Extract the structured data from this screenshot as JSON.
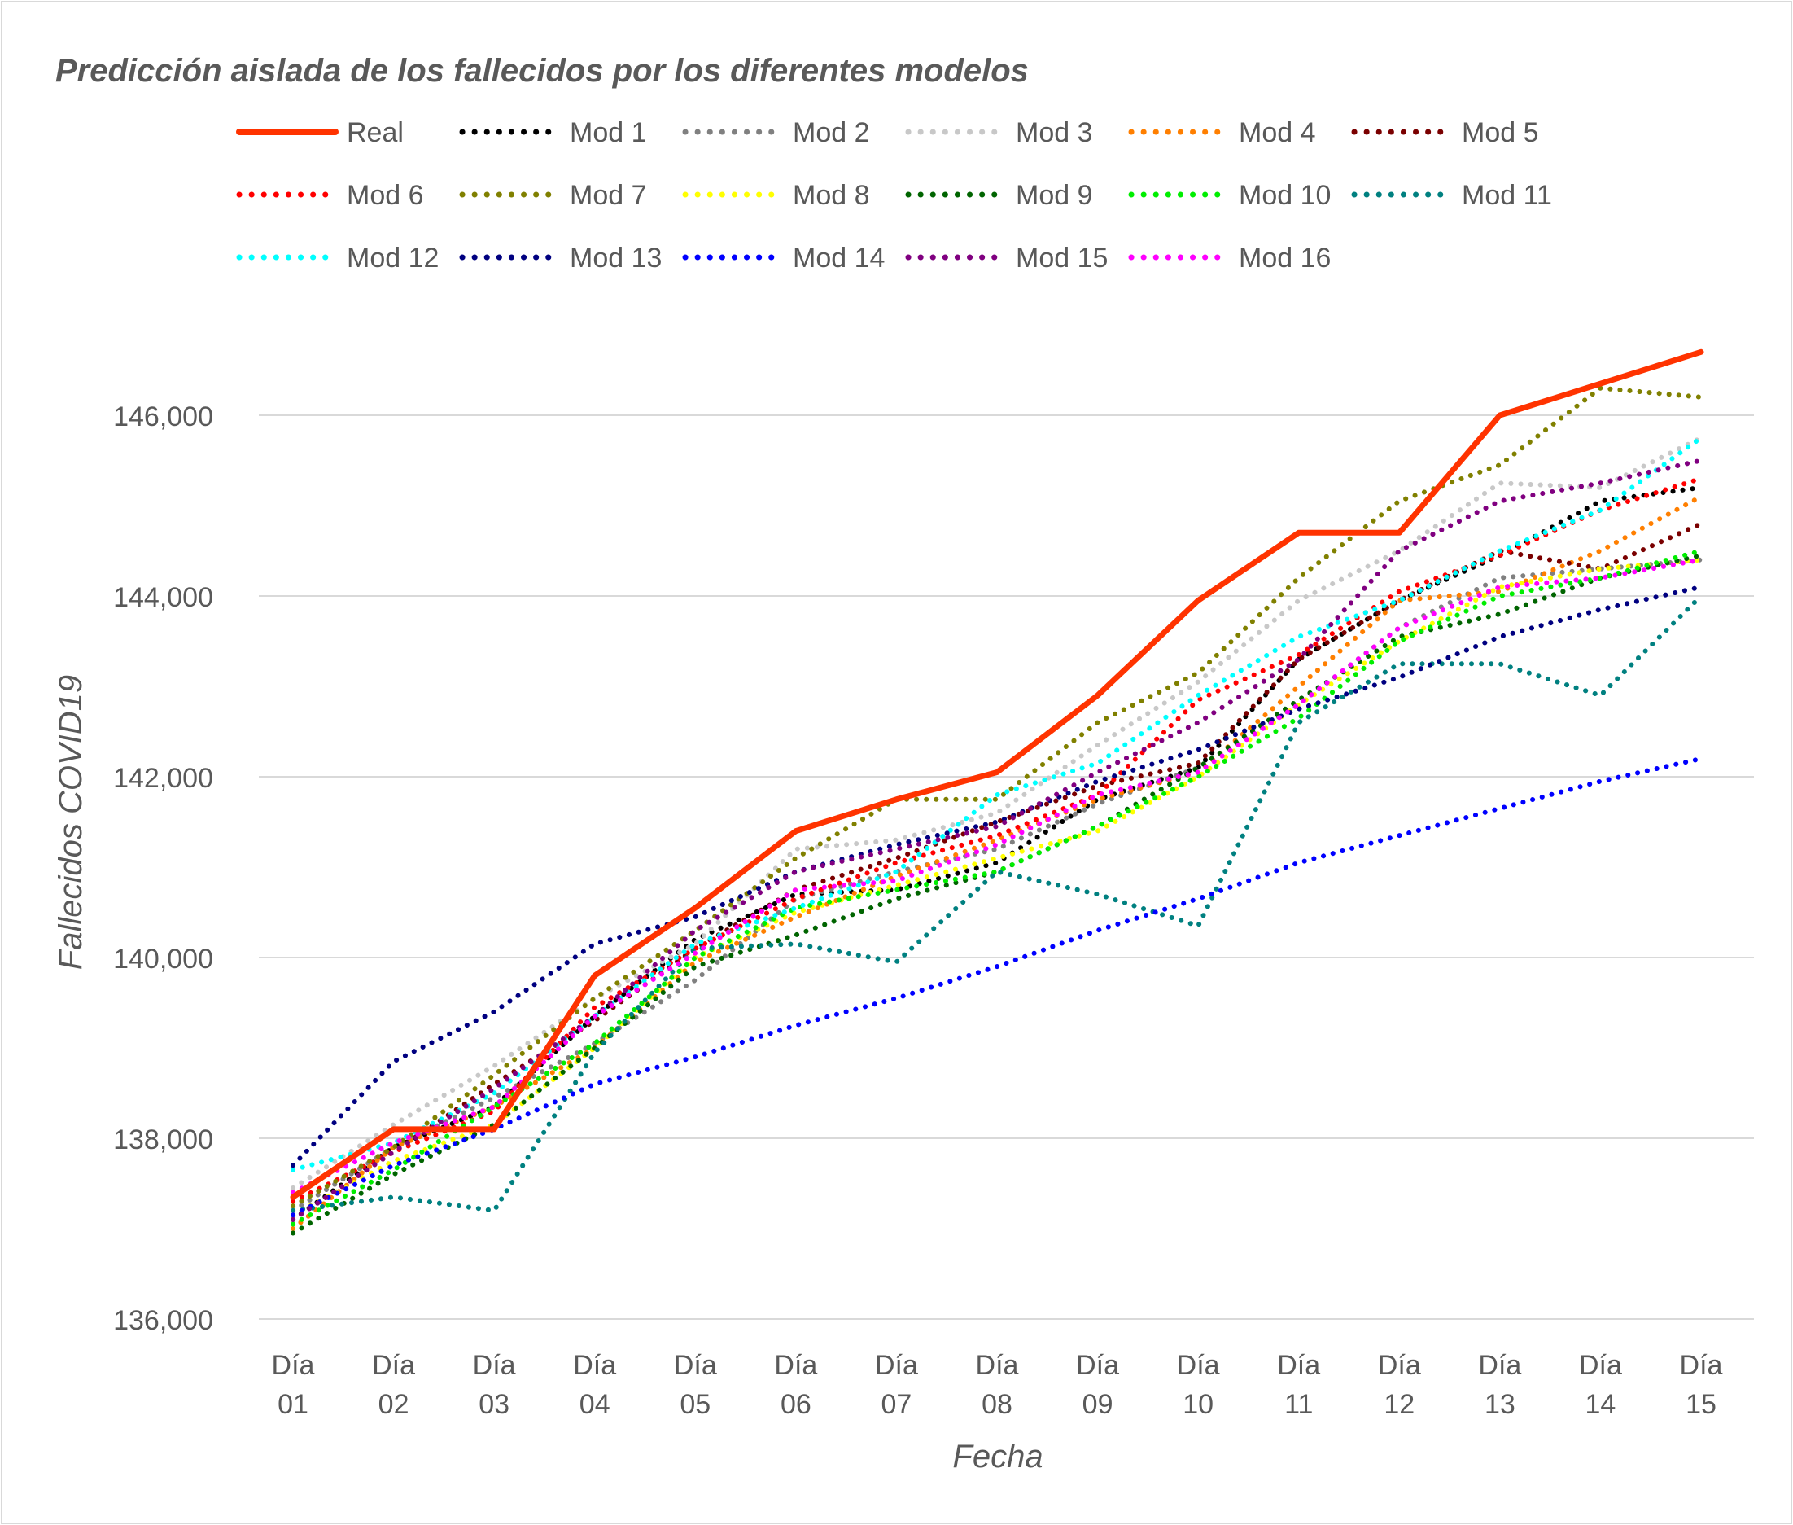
{
  "chart_data": {
    "type": "line",
    "title": "Predicción aislada de los fallecidos por los diferentes modelos",
    "xlabel": "Fecha",
    "ylabel": "Fallecidos COVID19",
    "ylim": [
      136000,
      146000
    ],
    "yticks": [
      136000,
      138000,
      140000,
      142000,
      144000,
      146000
    ],
    "ytick_labels": [
      "136,000",
      "138,000",
      "140,000",
      "142,000",
      "144,000",
      "146,000"
    ],
    "grid": "horizontal",
    "legend_position": "top",
    "categories": [
      [
        "Día",
        "01"
      ],
      [
        "Día",
        "02"
      ],
      [
        "Día",
        "03"
      ],
      [
        "Día",
        "04"
      ],
      [
        "Día",
        "05"
      ],
      [
        "Día",
        "06"
      ],
      [
        "Día",
        "07"
      ],
      [
        "Día",
        "08"
      ],
      [
        "Día",
        "09"
      ],
      [
        "Día",
        "10"
      ],
      [
        "Día",
        "11"
      ],
      [
        "Día",
        "12"
      ],
      [
        "Día",
        "13"
      ],
      [
        "Día",
        "14"
      ],
      [
        "Día",
        "15"
      ]
    ],
    "series": [
      {
        "name": "Real",
        "color": "#ff3300",
        "style": "solid",
        "values": [
          137350,
          138100,
          138100,
          139800,
          140550,
          141400,
          141750,
          142050,
          142900,
          143950,
          144700,
          144700,
          146000,
          146350,
          146700
        ]
      },
      {
        "name": "Mod 1",
        "color": "#000000",
        "style": "dotted",
        "values": [
          137100,
          137900,
          138350,
          139350,
          140200,
          140700,
          140750,
          141050,
          141750,
          142100,
          143300,
          143950,
          144450,
          145050,
          145200
        ]
      },
      {
        "name": "Mod 2",
        "color": "#808080",
        "style": "dotted",
        "values": [
          137200,
          137900,
          138450,
          139050,
          139750,
          140650,
          140950,
          141200,
          141700,
          142100,
          142800,
          143650,
          144200,
          144300,
          144400
        ]
      },
      {
        "name": "Mod 3",
        "color": "#c8c8c8",
        "style": "dotted",
        "values": [
          137450,
          138150,
          138800,
          139550,
          140150,
          141200,
          141300,
          141600,
          142350,
          143050,
          143950,
          144500,
          145250,
          145200,
          145750
        ]
      },
      {
        "name": "Mod 4",
        "color": "#ff7f00",
        "style": "dotted",
        "values": [
          137000,
          137900,
          138350,
          139000,
          139950,
          140450,
          140900,
          141300,
          141750,
          142050,
          143000,
          143950,
          144050,
          144500,
          145100
        ]
      },
      {
        "name": "Mod 5",
        "color": "#7a0000",
        "style": "dotted",
        "values": [
          137100,
          137850,
          138600,
          139300,
          140100,
          140750,
          141100,
          141500,
          141900,
          142150,
          143300,
          143950,
          144500,
          144300,
          144800
        ]
      },
      {
        "name": "Mod 6",
        "color": "#ff0000",
        "style": "dotted",
        "values": [
          137300,
          137850,
          138300,
          139450,
          140100,
          140650,
          141050,
          141350,
          141800,
          142850,
          143350,
          144050,
          144450,
          144950,
          145300
        ]
      },
      {
        "name": "Mod 7",
        "color": "#808000",
        "style": "dotted",
        "values": [
          137250,
          137900,
          138700,
          139550,
          140300,
          141100,
          141750,
          141750,
          142600,
          143150,
          144200,
          145050,
          145450,
          146300,
          146200
        ]
      },
      {
        "name": "Mod 8",
        "color": "#ffff00",
        "style": "dotted",
        "values": [
          137150,
          137750,
          138150,
          139000,
          140000,
          140500,
          140800,
          141100,
          141400,
          142000,
          142800,
          143500,
          144100,
          144300,
          144400
        ]
      },
      {
        "name": "Mod 9",
        "color": "#006400",
        "style": "dotted",
        "values": [
          136950,
          137600,
          138150,
          139000,
          139900,
          140250,
          140650,
          140950,
          141450,
          142100,
          142850,
          143550,
          143800,
          144200,
          144450
        ]
      },
      {
        "name": "Mod 10",
        "color": "#00ee00",
        "style": "dotted",
        "values": [
          137050,
          137650,
          138350,
          139050,
          140000,
          140550,
          140750,
          140950,
          141450,
          142000,
          142650,
          143500,
          144000,
          144200,
          144500
        ]
      },
      {
        "name": "Mod 11",
        "color": "#008080",
        "style": "dotted",
        "values": [
          137200,
          137350,
          137200,
          138950,
          140100,
          140150,
          139950,
          140950,
          140700,
          140350,
          142600,
          143250,
          143250,
          142900,
          144000
        ]
      },
      {
        "name": "Mod 12",
        "color": "#00ffff",
        "style": "dotted",
        "values": [
          137650,
          137950,
          138500,
          139350,
          140150,
          140550,
          140950,
          141800,
          142150,
          142900,
          143550,
          143950,
          144500,
          144950,
          145750
        ]
      },
      {
        "name": "Mod 13",
        "color": "#000080",
        "style": "dotted",
        "values": [
          137700,
          138850,
          139400,
          140150,
          140450,
          140950,
          141250,
          141500,
          141950,
          142300,
          142750,
          143100,
          143550,
          143850,
          144100
        ]
      },
      {
        "name": "Mod 14",
        "color": "#0000ff",
        "style": "dotted",
        "values": [
          137150,
          137700,
          138100,
          138600,
          138900,
          139250,
          139550,
          139900,
          140300,
          140650,
          141050,
          141350,
          141650,
          141950,
          142200
        ]
      },
      {
        "name": "Mod 15",
        "color": "#800080",
        "style": "dotted",
        "values": [
          137100,
          137850,
          138550,
          139350,
          140300,
          140950,
          141200,
          141450,
          142050,
          142600,
          143300,
          144500,
          145050,
          145250,
          145500
        ]
      },
      {
        "name": "Mod 16",
        "color": "#ff00ff",
        "style": "dotted",
        "values": [
          137400,
          137950,
          138350,
          139350,
          140050,
          140750,
          140850,
          141250,
          141800,
          142050,
          142800,
          143650,
          144100,
          144200,
          144400
        ]
      }
    ]
  }
}
